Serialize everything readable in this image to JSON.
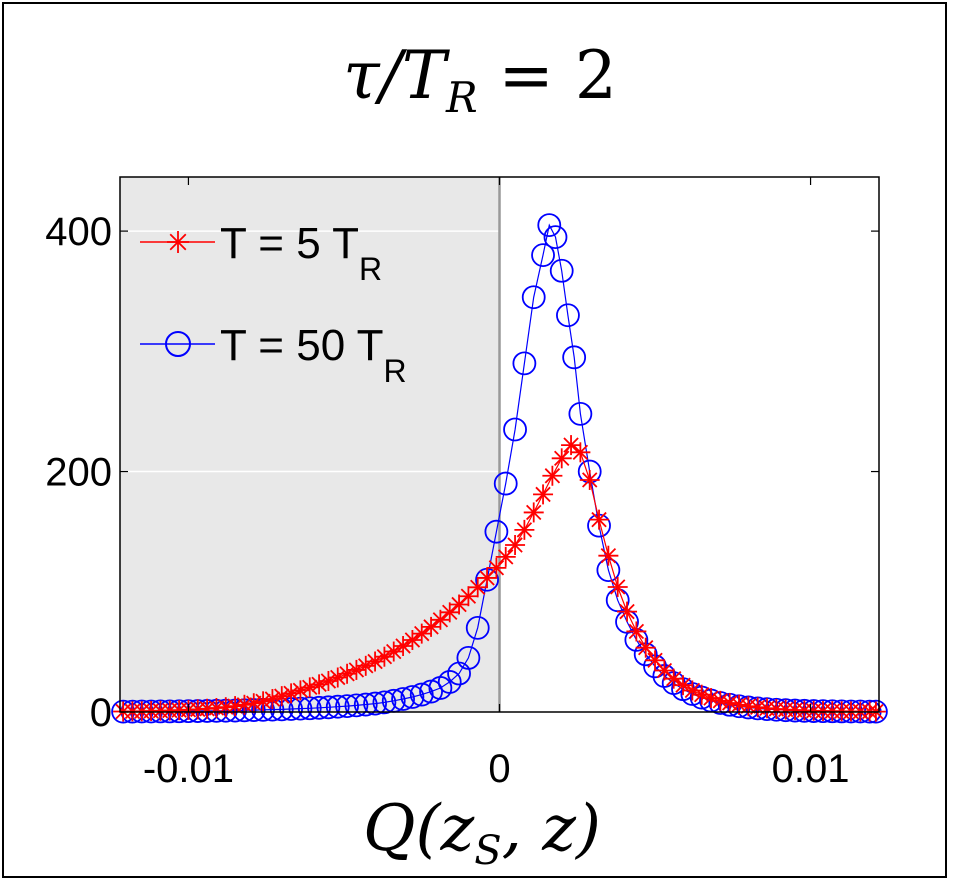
{
  "chart_data": {
    "type": "scatter",
    "title": "τ/T_R = 2",
    "title_parts": {
      "lhs": "τ/T",
      "sub": "R",
      "rhs": " = 2"
    },
    "xlabel": "Q(z_S, z)",
    "xlabel_parts": {
      "pre": "Q(z",
      "sub": "S",
      "post": ", z)"
    },
    "ylabel": "",
    "xlim": [
      -0.0122,
      0.0122
    ],
    "ylim": [
      0,
      445
    ],
    "xticks": [
      -0.01,
      0,
      0.01
    ],
    "xtick_labels": [
      "-0.01",
      "0",
      "0.01"
    ],
    "yticks": [
      0,
      200,
      400
    ],
    "ytick_labels": [
      "0",
      "200",
      "400"
    ],
    "shaded_region": {
      "x_from": -0.0122,
      "x_to": 0,
      "color": "#e8e8e8"
    },
    "vline_at": 0,
    "legend_position": "top-left",
    "series": [
      {
        "name": "T = 5 T_R",
        "label_main": "T = 5 T",
        "label_sub": "R",
        "color": "#ff0000",
        "marker": "star",
        "x": [
          -0.0121,
          -0.0118,
          -0.0115,
          -0.0112,
          -0.0109,
          -0.0106,
          -0.0103,
          -0.01,
          -0.0097,
          -0.0094,
          -0.0091,
          -0.0088,
          -0.0085,
          -0.0082,
          -0.0079,
          -0.0076,
          -0.0073,
          -0.007,
          -0.0067,
          -0.0064,
          -0.0061,
          -0.0058,
          -0.0055,
          -0.0052,
          -0.0049,
          -0.0046,
          -0.0043,
          -0.004,
          -0.0037,
          -0.0034,
          -0.0031,
          -0.0028,
          -0.0025,
          -0.0022,
          -0.0019,
          -0.0016,
          -0.0013,
          -0.001,
          -0.0007,
          -0.0004,
          -0.0001,
          0.0002,
          0.0005,
          0.0008,
          0.0011,
          0.0014,
          0.0017,
          0.002,
          0.0023,
          0.0026,
          0.0029,
          0.0032,
          0.0035,
          0.0038,
          0.0041,
          0.0044,
          0.0047,
          0.005,
          0.0053,
          0.0056,
          0.0059,
          0.0062,
          0.0065,
          0.0068,
          0.0071,
          0.0074,
          0.0077,
          0.008,
          0.0083,
          0.0086,
          0.0089,
          0.0092,
          0.0095,
          0.0098,
          0.0101,
          0.0104,
          0.0107,
          0.011,
          0.0113,
          0.0116,
          0.0119,
          0.0121
        ],
        "y": [
          0.4,
          0.5,
          0.6,
          0.8,
          1.0,
          1.2,
          1.5,
          1.8,
          2.2,
          2.7,
          3.3,
          4.0,
          4.9,
          6.0,
          7.3,
          8.9,
          10.8,
          13.2,
          15.5,
          18.0,
          20.5,
          23.0,
          25.8,
          28.7,
          31.8,
          35.0,
          38.4,
          42.0,
          46.0,
          50.3,
          54.9,
          59.9,
          65.2,
          70.8,
          76.7,
          82.9,
          89.4,
          96.3,
          103.7,
          111.5,
          119.9,
          129.0,
          138.9,
          151.5,
          166.0,
          181.0,
          196.5,
          211.0,
          222.0,
          216.0,
          193.0,
          160.0,
          130.0,
          104.0,
          83.5,
          67.0,
          53.5,
          43.0,
          34.5,
          27.7,
          22.3,
          17.9,
          14.4,
          11.6,
          9.3,
          7.5,
          6.0,
          4.8,
          3.9,
          3.1,
          2.5,
          2.0,
          1.6,
          1.3,
          1.0,
          0.8,
          0.7,
          0.6,
          0.5,
          0.4,
          0.4,
          0.3
        ]
      },
      {
        "name": "T = 50 T_R",
        "label_main": "T = 50 T",
        "label_sub": "R",
        "color": "#0000ff",
        "marker": "circle",
        "x": [
          -0.0121,
          -0.0118,
          -0.0115,
          -0.0112,
          -0.0109,
          -0.0106,
          -0.0103,
          -0.01,
          -0.0097,
          -0.0094,
          -0.0091,
          -0.0088,
          -0.0085,
          -0.0082,
          -0.0079,
          -0.0076,
          -0.0073,
          -0.007,
          -0.0067,
          -0.0064,
          -0.0061,
          -0.0058,
          -0.0055,
          -0.0052,
          -0.0049,
          -0.0046,
          -0.0043,
          -0.004,
          -0.0037,
          -0.0034,
          -0.0031,
          -0.0028,
          -0.0025,
          -0.0022,
          -0.0019,
          -0.0016,
          -0.0013,
          -0.001,
          -0.0007,
          -0.0004,
          -0.0001,
          0.0002,
          0.0005,
          0.0008,
          0.0011,
          0.0014,
          0.0016,
          0.0018,
          0.002,
          0.0022,
          0.0024,
          0.0026,
          0.0029,
          0.0032,
          0.0035,
          0.0038,
          0.0041,
          0.0044,
          0.0047,
          0.005,
          0.0053,
          0.0056,
          0.0059,
          0.0062,
          0.0065,
          0.0068,
          0.0071,
          0.0074,
          0.0077,
          0.008,
          0.0083,
          0.0086,
          0.0089,
          0.0092,
          0.0095,
          0.0098,
          0.0101,
          0.0104,
          0.0107,
          0.011,
          0.0113,
          0.0116,
          0.0119,
          0.0121
        ],
        "y": [
          0.3,
          0.3,
          0.4,
          0.4,
          0.5,
          0.5,
          0.6,
          0.7,
          0.8,
          0.9,
          1.0,
          1.1,
          1.2,
          1.4,
          1.6,
          1.8,
          2.0,
          2.2,
          2.5,
          2.8,
          3.1,
          3.5,
          3.9,
          4.4,
          4.9,
          5.5,
          6.2,
          7.0,
          8.0,
          9.3,
          10.8,
          12.5,
          14.5,
          17.0,
          20.0,
          25.0,
          32.0,
          45.0,
          70.0,
          110.0,
          150.0,
          190.0,
          235.0,
          290.0,
          345.0,
          380.0,
          405.0,
          395.0,
          367.0,
          330.0,
          295.0,
          248.0,
          200.0,
          155.0,
          118.0,
          93.0,
          75.0,
          60.0,
          48.0,
          38.0,
          30.0,
          24.0,
          19.0,
          15.0,
          12.0,
          9.5,
          7.5,
          6.0,
          4.8,
          3.8,
          3.0,
          2.4,
          1.9,
          1.5,
          1.2,
          1.0,
          0.8,
          0.7,
          0.6,
          0.5,
          0.4,
          0.4,
          0.3,
          0.3
        ]
      }
    ]
  }
}
